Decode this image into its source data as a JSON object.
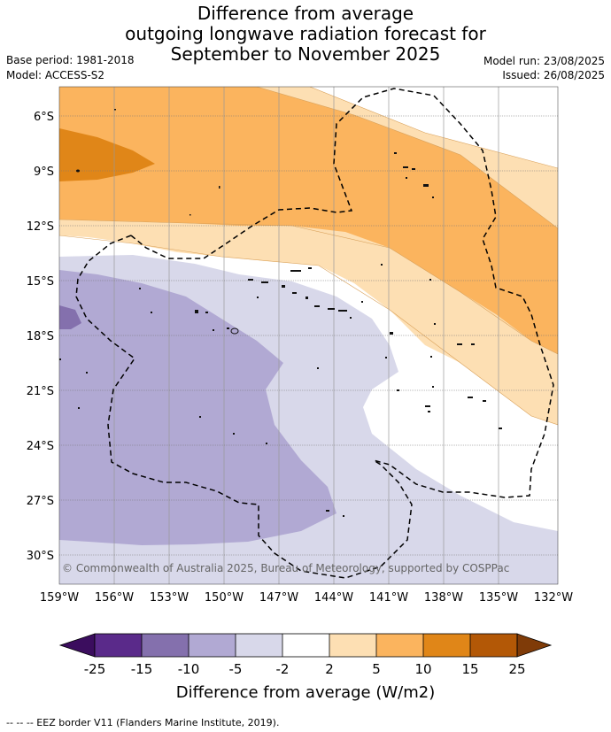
{
  "title": {
    "line1": "Difference from average",
    "line2": "outgoing longwave radiation forecast for",
    "line3": "September to November 2025"
  },
  "meta": {
    "base_period": "Base period: 1981-2018",
    "model": "Model: ACCESS-S2",
    "model_run": "Model run: 23/08/2025",
    "issued": "Issued: 26/08/2025"
  },
  "axes": {
    "lat_labels": [
      "6°S",
      "9°S",
      "12°S",
      "15°S",
      "18°S",
      "21°S",
      "24°S",
      "27°S",
      "30°S"
    ],
    "lon_labels": [
      "159°W",
      "156°W",
      "153°W",
      "150°W",
      "147°W",
      "144°W",
      "141°W",
      "138°W",
      "135°W",
      "132°W"
    ]
  },
  "copyright": "© Commonwealth of Australia 2025, Bureau of Meteorology, supported by COSPPac",
  "colorbar": {
    "title": "Difference from average (W/m2)",
    "tick_labels": [
      "-25",
      "-15",
      "-10",
      "-5",
      "-2",
      "2",
      "5",
      "10",
      "15",
      "25"
    ],
    "colors": {
      "below_-25": "#3b0d5e",
      "-25_-15": "#5a2a8a",
      "-15_-10": "#8470ad",
      "-10_-5": "#b1a9d3",
      "-5_-2": "#d8d8ea",
      "-2_2": "#ffffff",
      "2_5": "#fddfb3",
      "5_10": "#fbb45e",
      "10_15": "#e08618",
      "15_25": "#b35806",
      "above_25": "#7f3b08"
    }
  },
  "footer": "--  --  -- EEZ border V11 (Flanders Marine Institute, 2019)."
}
